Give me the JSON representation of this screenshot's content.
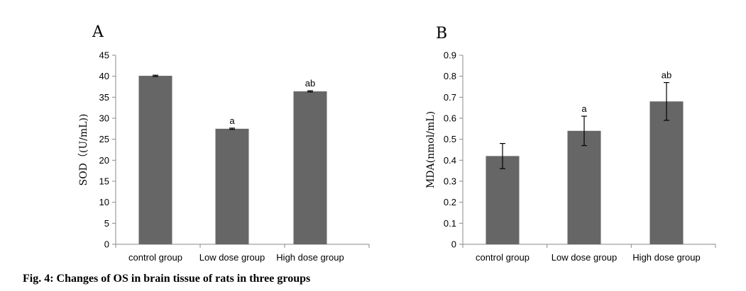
{
  "caption": "Fig. 4: Changes of OS in brain tissue of rats in three groups",
  "colors": {
    "bar": "#666666",
    "axis": "#888888",
    "error": "#000000"
  },
  "chart_data": [
    {
      "type": "bar",
      "panel": "A",
      "categories": [
        "control group",
        "Low dose group",
        "High dose group"
      ],
      "values": [
        40.1,
        27.5,
        36.4
      ],
      "errors": [
        0.15,
        0.15,
        0.15
      ],
      "data_labels": [
        "",
        "a",
        "ab"
      ],
      "ylabel": "SOD（(U/mL))",
      "xlabel": "",
      "ylim": [
        0,
        45
      ],
      "yticks": [
        0,
        5,
        10,
        15,
        20,
        25,
        30,
        35,
        40,
        45
      ],
      "ytick_labels": [
        "0",
        "5",
        "10",
        "15",
        "20",
        "25",
        "30",
        "35",
        "40",
        "45"
      ],
      "grid": false,
      "legend": "none"
    },
    {
      "type": "bar",
      "panel": "B",
      "categories": [
        "control group",
        "Low dose group",
        "High dose group"
      ],
      "values": [
        0.42,
        0.54,
        0.68
      ],
      "errors": [
        0.06,
        0.07,
        0.09
      ],
      "data_labels": [
        "",
        "a",
        "ab"
      ],
      "ylabel": "MDA(nmol/mL)",
      "xlabel": "",
      "ylim": [
        0,
        0.9
      ],
      "yticks": [
        0,
        0.1,
        0.2,
        0.3,
        0.4,
        0.5,
        0.6,
        0.7,
        0.8,
        0.9
      ],
      "ytick_labels": [
        "0",
        "0.1",
        "0.2",
        "0.3",
        "0.4",
        "0.5",
        "0.6",
        "0.7",
        "0.8",
        "0.9"
      ],
      "grid": false,
      "legend": "none"
    }
  ]
}
